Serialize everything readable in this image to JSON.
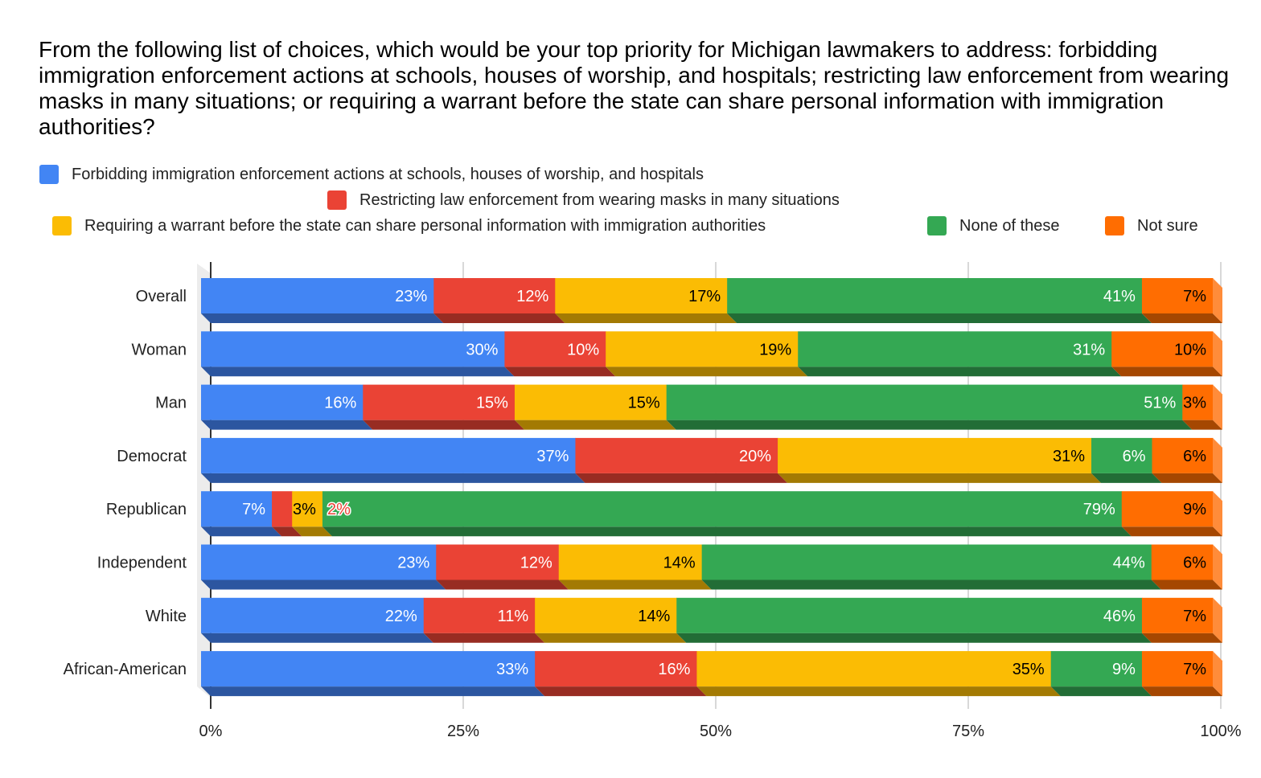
{
  "chart_data": {
    "type": "bar",
    "orientation": "horizontal",
    "stacked": "percent",
    "style": "3d",
    "title": "From the following list of choices, which would be your top priority for Michigan lawmakers to address: forbidding immigration enforcement actions at schools, houses of worship, and hospitals; restricting law enforcement from wearing masks in many situations; or requiring a warrant before the state can share personal information with immigration authorities?",
    "categories": [
      "Overall",
      "Woman",
      "Man",
      "Democrat",
      "Republican",
      "Independent",
      "White",
      "African-American"
    ],
    "series": [
      {
        "name": "Forbidding immigration enforcement actions at schools, houses of worship, and hospitals",
        "color": "#4285f4",
        "dark": "#2c56a0",
        "labelColor": "#ffffff",
        "values": [
          23,
          30,
          16,
          37,
          7,
          23,
          22,
          33
        ]
      },
      {
        "name": "Restricting law enforcement from wearing masks in many situations",
        "color": "#ea4335",
        "dark": "#982c22",
        "labelColor": "#ffffff",
        "values": [
          12,
          10,
          15,
          20,
          2,
          12,
          11,
          16
        ]
      },
      {
        "name": "Requiring a warrant before the state can share personal information with immigration authorities",
        "color": "#fbbc04",
        "dark": "#a37a03",
        "labelColor": "#000000",
        "values": [
          17,
          19,
          15,
          31,
          3,
          14,
          14,
          35
        ]
      },
      {
        "name": "None of these",
        "color": "#34a853",
        "dark": "#226d36",
        "labelColor": "#ffffff",
        "values": [
          41,
          31,
          51,
          6,
          79,
          44,
          46,
          9
        ]
      },
      {
        "name": "Not sure",
        "color": "#ff6d01",
        "dark": "#a54701",
        "side": "#ff8c3a",
        "labelColor": "#000000",
        "values": [
          7,
          10,
          3,
          6,
          9,
          6,
          7,
          7
        ]
      }
    ],
    "xlim": [
      0,
      100
    ],
    "xticks": [
      "0%",
      "25%",
      "50%",
      "75%",
      "100%"
    ],
    "legend_position": "top",
    "grid": true
  }
}
